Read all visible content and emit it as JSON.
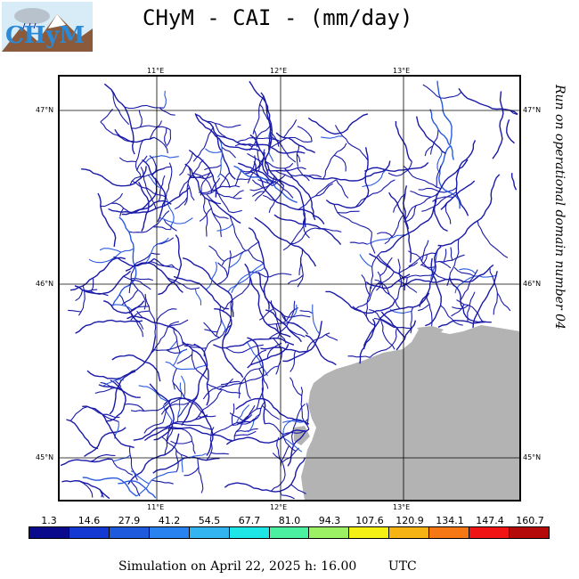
{
  "header": {
    "title": "CHyM - CAI - (mm/day)",
    "logo_text": "CHyM"
  },
  "side_label": "Run on operational domain number 04",
  "axes": {
    "lon_top": [
      "11°E",
      "12°E",
      "13°E"
    ],
    "lon_bottom": [
      "11°E",
      "12°E",
      "13°E"
    ],
    "lat_left": [
      "47°N",
      "46°N",
      "45°N"
    ],
    "lat_right": [
      "47°N",
      "46°N",
      "45°N"
    ]
  },
  "colorbar": {
    "labels": [
      "1.3",
      "14.6",
      "27.9",
      "41.2",
      "54.5",
      "67.7",
      "81.0",
      "94.3",
      "107.6",
      "120.9",
      "134.1",
      "147.4",
      "160.7"
    ],
    "colors": [
      "#0a0a8c",
      "#1438d2",
      "#1e5adc",
      "#2882f0",
      "#32b4f0",
      "#1ee6e6",
      "#4bf0a0",
      "#9bf064",
      "#f5f014",
      "#f5b414",
      "#f57814",
      "#f01414",
      "#b40a0a"
    ]
  },
  "footer": {
    "text": "Simulation on April 22, 2025 h: 16.00        UTC"
  },
  "colors": {
    "river": "#1a1aa8",
    "river_light": "#2a5ae0",
    "sea": "#b3b3b3",
    "frame": "#000000"
  }
}
